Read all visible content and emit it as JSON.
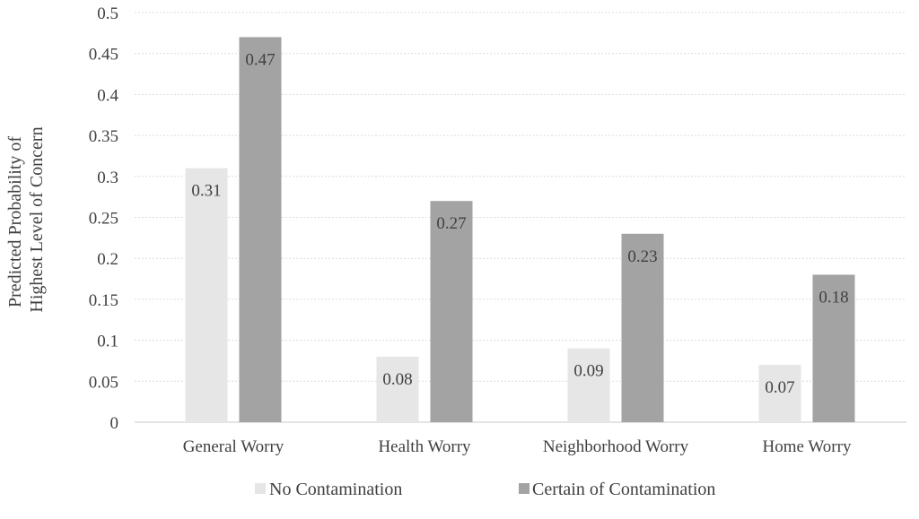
{
  "chart_data": {
    "type": "bar",
    "title": "",
    "xlabel": "",
    "ylabel": [
      "Predicted Probability of",
      "Highest Level of Concern"
    ],
    "ylim": [
      0,
      0.5
    ],
    "yticks": [
      "0",
      "0.05",
      "0.1",
      "0.15",
      "0.2",
      "0.25",
      "0.3",
      "0.35",
      "0.4",
      "0.45",
      "0.5"
    ],
    "grid": true,
    "legend_position": "bottom",
    "categories": [
      "General Worry",
      "Health Worry",
      "Neighborhood Worry",
      "Home Worry"
    ],
    "series": [
      {
        "name": "No Contamination",
        "values": [
          0.31,
          0.08,
          0.09,
          0.07
        ],
        "labels": [
          "0.31",
          "0.08",
          "0.09",
          "0.07"
        ],
        "color": "#e6e6e6"
      },
      {
        "name": "Certain of Contamination",
        "values": [
          0.47,
          0.27,
          0.23,
          0.18
        ],
        "labels": [
          "0.47",
          "0.27",
          "0.23",
          "0.18"
        ],
        "color": "#a3a3a3"
      }
    ]
  }
}
